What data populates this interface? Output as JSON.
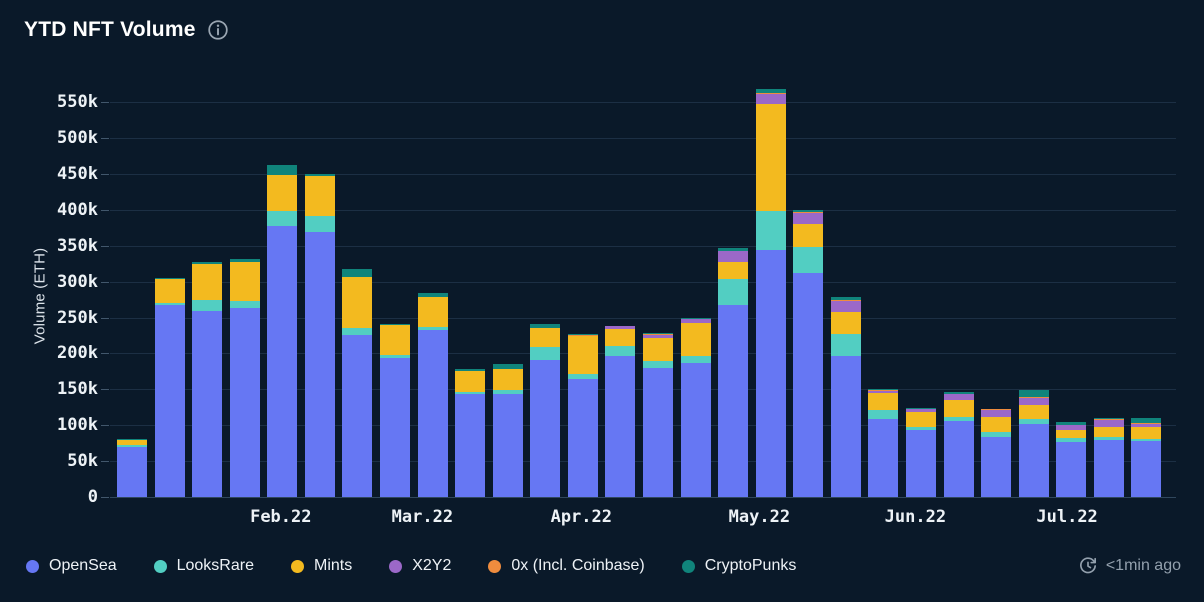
{
  "header": {
    "title": "YTD NFT Volume"
  },
  "updated": {
    "label": "<1min ago"
  },
  "colors": {
    "background": "#0a1929",
    "grid": "rgba(125,170,210,0.16)",
    "title_text": "#ffffff",
    "axis_text": "#edf2f6",
    "muted_text": "#93a0ad",
    "icon_gray": "#9aa6b2"
  },
  "chart_data": {
    "type": "bar",
    "stacked": true,
    "title": "YTD NFT Volume",
    "xlabel": "",
    "ylabel": "Volume (ETH)",
    "x_unit": "week (Jan 2022 - Jul 2022)",
    "values_unit": "thousand ETH",
    "bar_count": 28,
    "ylim_thousands": [
      0,
      580
    ],
    "grid": true,
    "legend_position": "bottom-left",
    "yticks": [
      {
        "label": "0",
        "v": 0
      },
      {
        "label": "50k",
        "v": 50
      },
      {
        "label": "100k",
        "v": 100
      },
      {
        "label": "150k",
        "v": 150
      },
      {
        "label": "200k",
        "v": 200
      },
      {
        "label": "250k",
        "v": 250
      },
      {
        "label": "300k",
        "v": 300
      },
      {
        "label": "350k",
        "v": 350
      },
      {
        "label": "400k",
        "v": 400
      },
      {
        "label": "450k",
        "v": 450
      },
      {
        "label": "500k",
        "v": 500
      },
      {
        "label": "550k",
        "v": 550
      }
    ],
    "month_ticks": [
      {
        "label": "Feb.22",
        "pos": 3.96
      },
      {
        "label": "Mar.22",
        "pos": 7.73
      },
      {
        "label": "Apr.22",
        "pos": 11.96
      },
      {
        "label": "May.22",
        "pos": 16.7
      },
      {
        "label": "Jun.22",
        "pos": 20.85
      },
      {
        "label": "Jul.22",
        "pos": 24.89
      }
    ],
    "series": [
      {
        "name": "OpenSea",
        "color": "#6677f3",
        "values": [
          70,
          267,
          259,
          263,
          377,
          369,
          225,
          194,
          232,
          144,
          144,
          191,
          164,
          197,
          179,
          186,
          268,
          344,
          312,
          196,
          108,
          93,
          106,
          84,
          102,
          77,
          80,
          78
        ]
      },
      {
        "name": "LooksRare",
        "color": "#52cec2",
        "values": [
          2,
          3,
          15,
          10,
          22,
          22,
          10,
          4,
          5,
          2,
          5,
          18,
          8,
          14,
          11,
          11,
          36,
          54,
          36,
          31,
          13,
          5,
          6,
          6,
          6,
          5,
          3,
          3
        ]
      },
      {
        "name": "Mints",
        "color": "#f3ba1f",
        "values": [
          8,
          33,
          50,
          55,
          50,
          56,
          71,
          41,
          42,
          30,
          30,
          26,
          52,
          23,
          32,
          45,
          23,
          149,
          32,
          31,
          24,
          21,
          23,
          22,
          20,
          12,
          15,
          16
        ]
      },
      {
        "name": "X2Y2",
        "color": "#9b68c8",
        "values": [
          0,
          0,
          0,
          0,
          0,
          0,
          0,
          0,
          0,
          0,
          0,
          0,
          0,
          4,
          4,
          6,
          15,
          15,
          16,
          15,
          3,
          3,
          8,
          9,
          10,
          6,
          9,
          5
        ]
      },
      {
        "name": "0x (Incl. Coinbase)",
        "color": "#ef8c3e",
        "values": [
          0,
          0,
          0,
          0,
          0,
          0,
          0,
          0,
          0,
          0,
          0,
          1,
          1,
          0,
          1,
          0,
          1,
          1,
          1,
          1,
          1,
          1,
          1,
          1,
          1,
          1,
          1,
          1
        ]
      },
      {
        "name": "CryptoPunks",
        "color": "#10847b",
        "values": [
          1,
          2,
          3,
          4,
          13,
          3,
          12,
          2,
          5,
          2,
          7,
          5,
          2,
          0,
          1,
          2,
          4,
          5,
          3,
          5,
          1,
          1,
          3,
          1,
          10,
          3,
          2,
          7
        ]
      }
    ]
  }
}
